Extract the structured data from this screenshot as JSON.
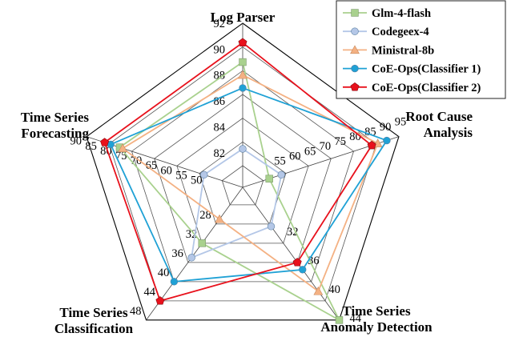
{
  "chart_data": {
    "type": "radar",
    "axes": [
      {
        "label_lines": [
          "Log Parser"
        ],
        "ticks": [
          "82",
          "84",
          "86",
          "88",
          "90",
          "92"
        ],
        "range": [
          81,
          92
        ]
      },
      {
        "label_lines": [
          "Root Cause",
          "Analysis"
        ],
        "ticks": [
          "55",
          "60",
          "65",
          "70",
          "75",
          "80",
          "85",
          "90",
          "95"
        ],
        "range": [
          50,
          95
        ]
      },
      {
        "label_lines": [
          "Time Series",
          "Anomaly Detection"
        ],
        "ticks": [
          "32",
          "36",
          "40",
          "44"
        ],
        "range": [
          28,
          44
        ]
      },
      {
        "label_lines": [
          "Time Series",
          "Classification"
        ],
        "ticks": [
          "28",
          "32",
          "36",
          "40",
          "44",
          "48"
        ],
        "range": [
          24,
          48
        ]
      },
      {
        "label_lines": [
          "Time Series",
          "Forecasting"
        ],
        "ticks": [
          "50",
          "55",
          "60",
          "65",
          "70",
          "75",
          "80",
          "85",
          "90"
        ],
        "range": [
          45,
          90
        ]
      }
    ],
    "series": [
      {
        "name": "Glm-4-flash",
        "color": "#a9d18e",
        "marker": "square",
        "values": [
          89.0,
          52.0,
          44.0,
          32.0,
          79.0
        ]
      },
      {
        "name": "Codegeex-4",
        "color": "#b4c7e7",
        "marker": "circle",
        "values": [
          82.3,
          56.0,
          31.0,
          35.0,
          51.0
        ]
      },
      {
        "name": "Ministral-8b",
        "color": "#f4b183",
        "marker": "triangle",
        "values": [
          88.0,
          88.0,
          40.0,
          27.0,
          78.0
        ]
      },
      {
        "name": "CoE-Ops(Classifier 1)",
        "color": "#1fa1d5",
        "marker": "circle",
        "values": [
          87.0,
          91.0,
          37.0,
          40.0,
          82.0
        ]
      },
      {
        "name": "CoE-Ops(Classifier 2)",
        "color": "#e8111c",
        "marker": "pentagon",
        "values": [
          90.5,
          86.0,
          36.0,
          44.0,
          84.0
        ]
      }
    ],
    "legend_position": "top-right",
    "grid": true
  }
}
